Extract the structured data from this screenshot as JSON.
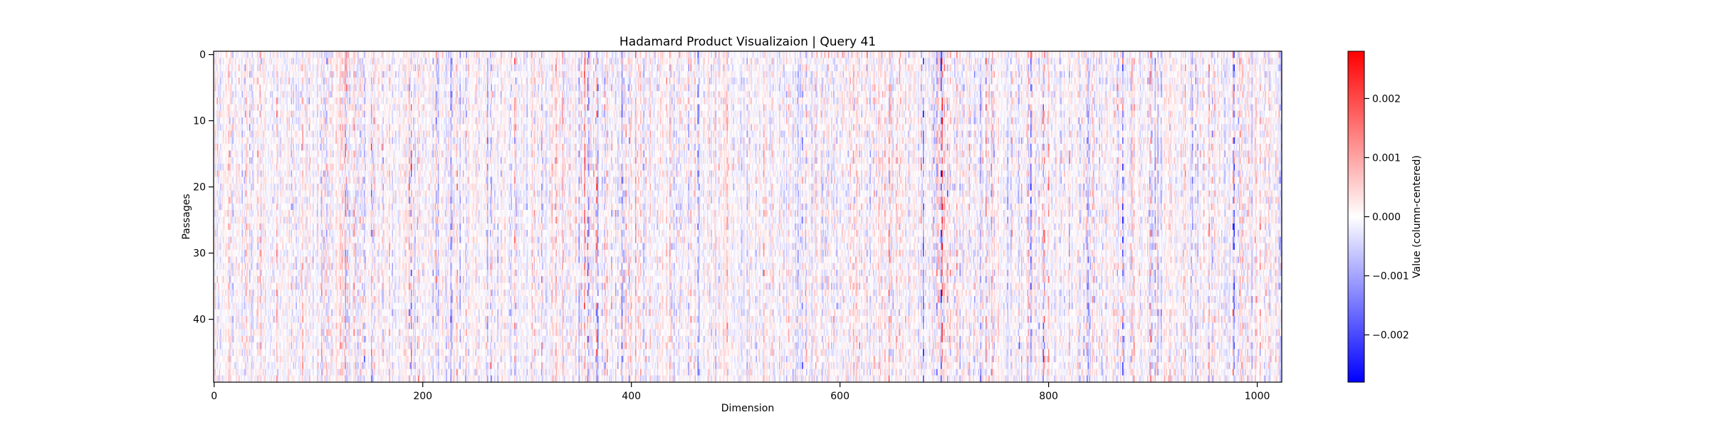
{
  "chart_data": {
    "type": "heatmap",
    "title": "Hadamard Product Visualizaion | Query 41",
    "xlabel": "Dimension",
    "ylabel": "Passages",
    "n_rows": 50,
    "n_cols": 1024,
    "x_ticks": [
      0,
      200,
      400,
      600,
      800,
      1000
    ],
    "x_tick_labels": [
      "0",
      "200",
      "400",
      "600",
      "800",
      "1000"
    ],
    "y_ticks": [
      0,
      10,
      20,
      30,
      40
    ],
    "y_tick_labels": [
      "0",
      "10",
      "20",
      "30",
      "40"
    ],
    "xlim": [
      -0.5,
      1023.5
    ],
    "ylim": [
      49.5,
      -0.5
    ],
    "colormap": "bwr",
    "colormap_stops": [
      "#0000ff",
      "#ffffff",
      "#ff0000"
    ],
    "value_range": [
      -0.0028,
      0.0028
    ],
    "colorbar": {
      "label": "Value (column-centered)",
      "ticks": [
        0.002,
        0.001,
        0.0,
        -0.001,
        -0.002
      ],
      "tick_labels": [
        "0.002",
        "0.001",
        "0.000",
        "−0.001",
        "−0.002"
      ]
    },
    "grid": false
  }
}
